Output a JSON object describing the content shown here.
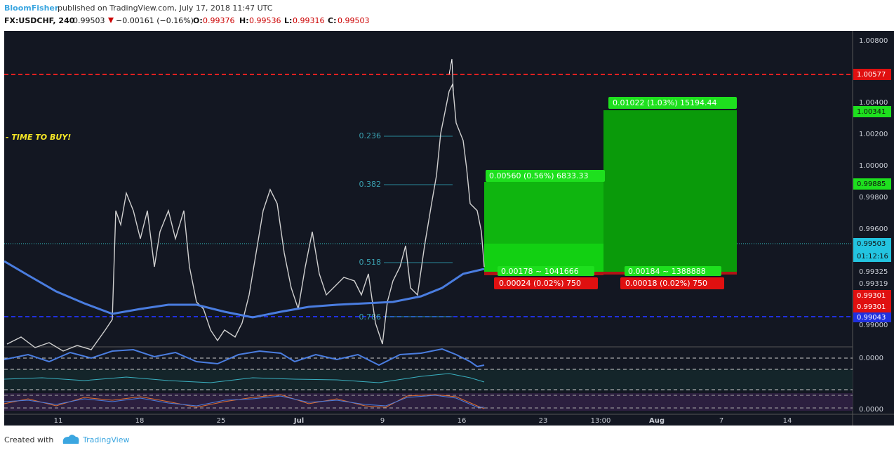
{
  "header": {
    "author": "BloomFisher",
    "published": "published on TradingView.com, July 17, 2018 11:47 UTC",
    "symbol": "FX:USDCHF, 240",
    "last": "0.99503",
    "change": "−0.00161 (−0.16%)",
    "open_label": "O:",
    "open": "0.99376",
    "high_label": "H:",
    "high": "0.99536",
    "low_label": "L:",
    "low": "0.99316",
    "close_label": "C:",
    "close": "0.99503"
  },
  "annotation": "- TIME TO BUY!",
  "fib_levels": [
    "0.236",
    "0.382",
    "0.518",
    "0.786"
  ],
  "positions": [
    {
      "profit": "0.00560 (0.56%) 6833.33",
      "entry": "0.00178 ~ 1041666",
      "stop": "0.00024 (0.02%) 750"
    },
    {
      "profit": "0.01022 (1.03%) 15194.44",
      "entry": "0.00184 ~ 1388888",
      "stop": "0.00018 (0.02%) 750"
    }
  ],
  "price_axis": [
    "1.00800",
    "1.00577",
    "1.00400",
    "1.00341",
    "1.00200",
    "1.00000",
    "0.99885",
    "0.99800",
    "0.99600",
    "0.99503",
    "01:12:16",
    "0.99325",
    "0.99319",
    "0.99301",
    "0.99301",
    "0.99043",
    "0.99000"
  ],
  "indicator_axis": [
    "0.0000",
    "0.0000"
  ],
  "time_axis": [
    "11",
    "18",
    "25",
    "Jul",
    "9",
    "16",
    "23",
    "13:00",
    "Aug",
    "7",
    "14"
  ],
  "footer": {
    "created": "Created with",
    "brand": "TradingView"
  }
}
